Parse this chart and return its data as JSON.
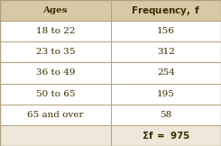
{
  "header": [
    "Ages",
    "Frequency, f"
  ],
  "rows": [
    [
      "18 to 22",
      "156"
    ],
    [
      "23 to 35",
      "312"
    ],
    [
      "36 to 49",
      "254"
    ],
    [
      "50 to 65",
      "195"
    ],
    [
      "65 and over",
      "58"
    ]
  ],
  "footer_right": "Σf = 975",
  "header_bg": "#d9c8a5",
  "body_bg": "#ffffff",
  "footer_bg": "#ede8da",
  "border_color": "#b0a080",
  "header_text_color": "#3a2e00",
  "body_text_color": "#3a2e00",
  "col_split": 0.5,
  "figsize": [
    2.45,
    1.62
  ],
  "dpi": 100
}
